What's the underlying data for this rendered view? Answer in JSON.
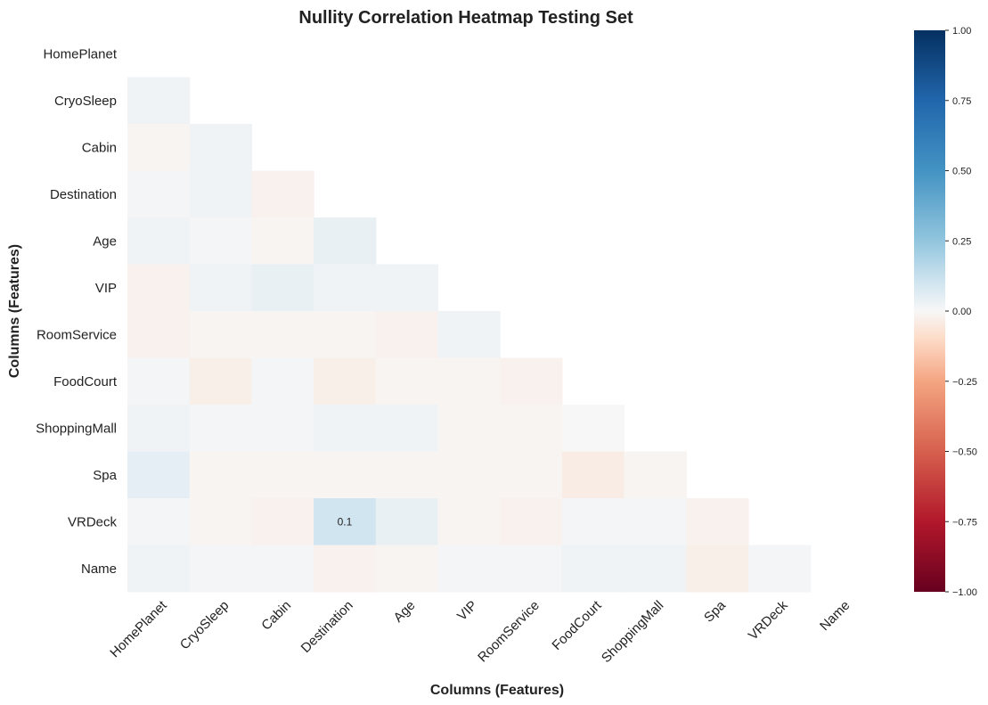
{
  "chart_data": {
    "type": "heatmap",
    "title": "Nullity Correlation Heatmap Testing Set",
    "xlabel": "Columns (Features)",
    "ylabel": "Columns (Features)",
    "labels": [
      "HomePlanet",
      "CryoSleep",
      "Cabin",
      "Destination",
      "Age",
      "VIP",
      "RoomService",
      "FoodCourt",
      "ShoppingMall",
      "Spa",
      "VRDeck",
      "Name"
    ],
    "mask": "upper-triangle-and-diagonal",
    "values": [
      [
        null,
        null,
        null,
        null,
        null,
        null,
        null,
        null,
        null,
        null,
        null,
        null
      ],
      [
        0.02,
        null,
        null,
        null,
        null,
        null,
        null,
        null,
        null,
        null,
        null,
        null
      ],
      [
        -0.01,
        0.02,
        null,
        null,
        null,
        null,
        null,
        null,
        null,
        null,
        null,
        null
      ],
      [
        0.01,
        0.02,
        -0.02,
        null,
        null,
        null,
        null,
        null,
        null,
        null,
        null,
        null
      ],
      [
        0.02,
        0.01,
        -0.01,
        0.04,
        null,
        null,
        null,
        null,
        null,
        null,
        null,
        null
      ],
      [
        -0.02,
        0.02,
        0.04,
        0.02,
        0.02,
        null,
        null,
        null,
        null,
        null,
        null,
        null
      ],
      [
        -0.02,
        -0.01,
        -0.01,
        -0.01,
        -0.02,
        0.02,
        null,
        null,
        null,
        null,
        null,
        null
      ],
      [
        0.01,
        -0.03,
        0.01,
        -0.03,
        -0.01,
        -0.01,
        -0.02,
        null,
        null,
        null,
        null,
        null
      ],
      [
        0.02,
        0.01,
        0.01,
        0.02,
        0.02,
        -0.01,
        -0.01,
        0.0,
        null,
        null,
        null,
        null
      ],
      [
        0.05,
        -0.01,
        -0.01,
        -0.01,
        -0.01,
        -0.01,
        -0.01,
        -0.04,
        -0.01,
        null,
        null,
        null
      ],
      [
        0.01,
        -0.01,
        -0.02,
        0.1,
        0.04,
        -0.01,
        -0.02,
        0.01,
        0.01,
        -0.02,
        null,
        null
      ],
      [
        0.02,
        0.01,
        0.01,
        -0.02,
        -0.01,
        0.01,
        0.01,
        0.02,
        0.02,
        -0.03,
        0.01,
        null
      ]
    ],
    "annotations": [
      {
        "row": 10,
        "col": 3,
        "text": "0.1"
      }
    ],
    "colormap": "RdBu",
    "vmin": -1,
    "vmax": 1,
    "colorbar_ticks": [
      "1.00",
      "0.75",
      "0.50",
      "0.25",
      "0.00",
      "−0.25",
      "−0.50",
      "−0.75",
      "−1.00"
    ],
    "colorbar_values": [
      1,
      0.75,
      0.5,
      0.25,
      0,
      -0.25,
      -0.5,
      -0.75,
      -1
    ],
    "grid": false
  }
}
